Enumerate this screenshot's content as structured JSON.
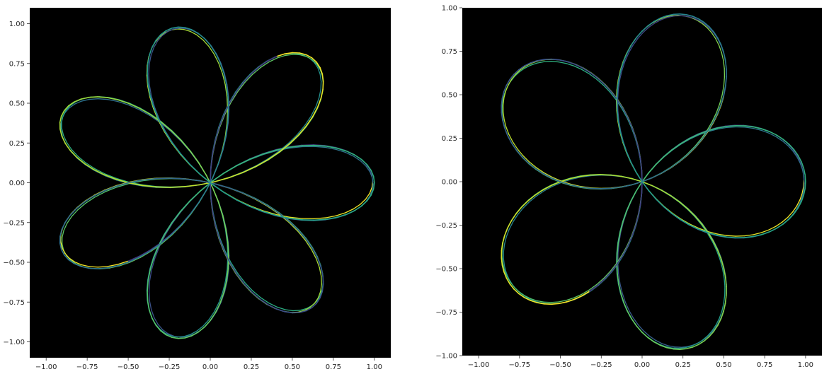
{
  "chart_data": [
    {
      "type": "line",
      "title": "",
      "xlabel": "",
      "ylabel": "",
      "background": "#000000",
      "colormap": "viridis",
      "curve": "rose r = cos(k*theta), k = 7/3, colored by segment",
      "petals": 7,
      "n": 7,
      "d": 3,
      "xlim": [
        -1.1,
        1.1
      ],
      "ylim": [
        -1.1,
        1.1
      ],
      "xticks": [
        -1.0,
        -0.75,
        -0.5,
        -0.25,
        0.0,
        0.25,
        0.5,
        0.75,
        1.0
      ],
      "yticks": [
        -1.0,
        -0.75,
        -0.5,
        -0.25,
        0.0,
        0.25,
        0.5,
        0.75,
        1.0
      ],
      "xticklabels": [
        "−1.00",
        "−0.75",
        "−0.50",
        "−0.25",
        "0.00",
        "0.25",
        "0.50",
        "0.75",
        "1.00"
      ],
      "yticklabels": [
        "−1.00",
        "−0.75",
        "−0.50",
        "−0.25",
        "0.00",
        "0.25",
        "0.50",
        "0.75",
        "1.00"
      ]
    },
    {
      "type": "line",
      "title": "",
      "xlabel": "",
      "ylabel": "",
      "background": "#000000",
      "colormap": "viridis",
      "curve": "rose r = cos(k*theta), k = 5/3, colored by segment",
      "petals": 5,
      "n": 5,
      "d": 3,
      "xlim": [
        -1.1,
        1.1
      ],
      "ylim": [
        -1.0,
        1.0
      ],
      "xticks": [
        -1.0,
        -0.75,
        -0.5,
        -0.25,
        0.0,
        0.25,
        0.5,
        0.75,
        1.0
      ],
      "yticks": [
        -1.0,
        -0.75,
        -0.5,
        -0.25,
        0.0,
        0.25,
        0.5,
        0.75,
        1.0
      ],
      "xticklabels": [
        "−1.00",
        "−0.75",
        "−0.50",
        "−0.25",
        "0.00",
        "0.25",
        "0.50",
        "0.75",
        "1.00"
      ],
      "yticklabels": [
        "−1.00",
        "−0.75",
        "−0.50",
        "−0.25",
        "0.00",
        "0.25",
        "0.50",
        "0.75",
        "1.00"
      ]
    }
  ]
}
